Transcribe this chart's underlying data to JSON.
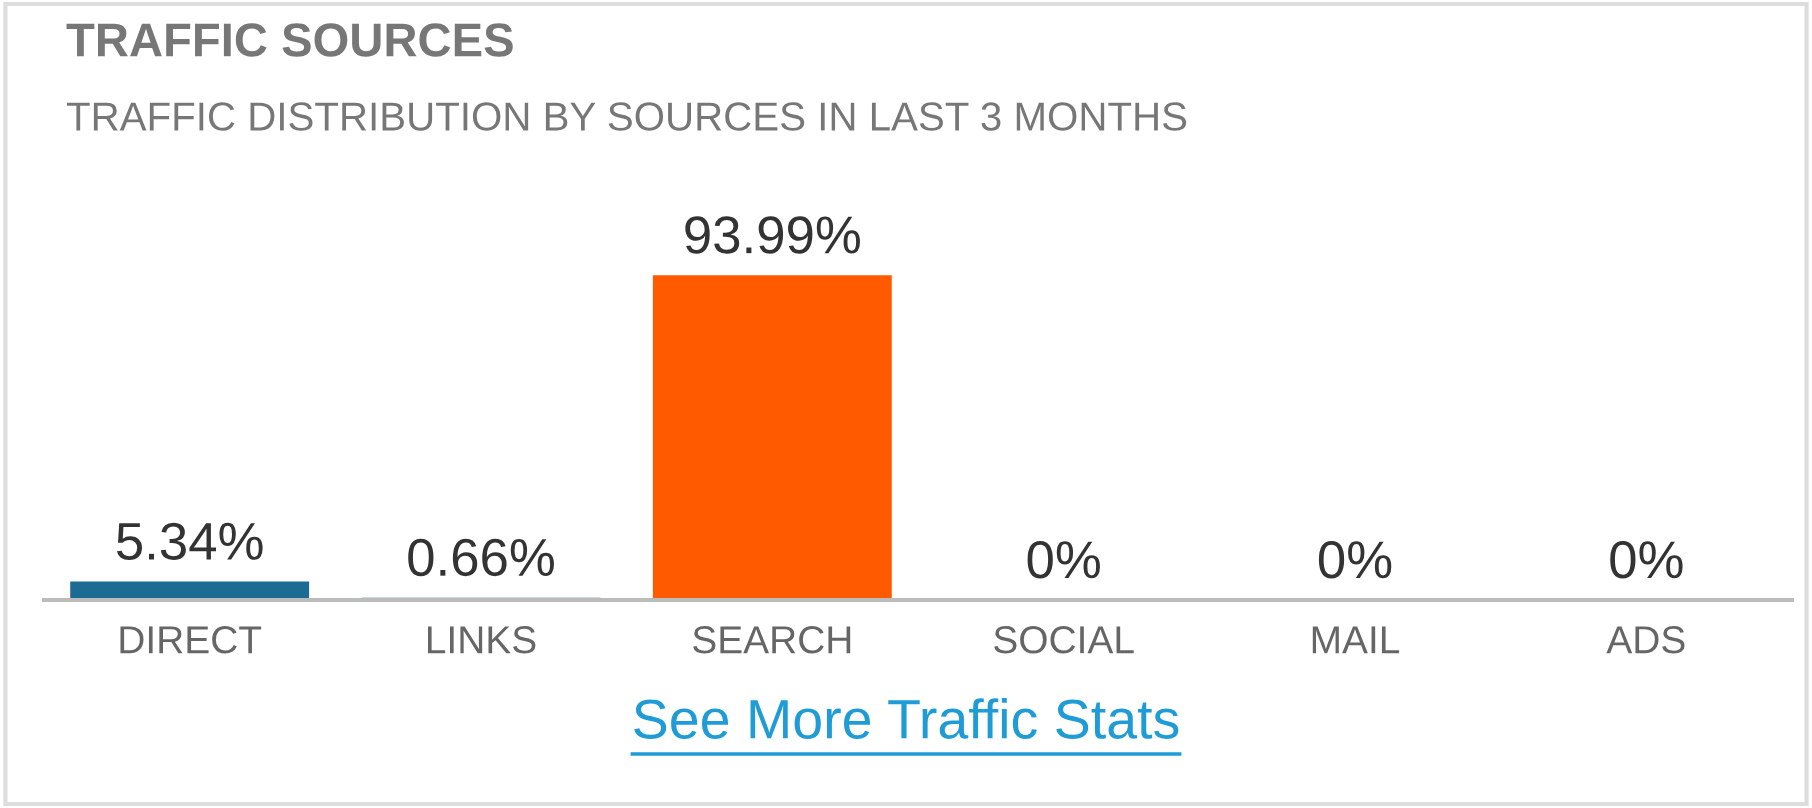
{
  "chart_data": {
    "type": "bar",
    "title": "TRAFFIC SOURCES",
    "subtitle": "TRAFFIC DISTRIBUTION BY SOURCES IN LAST 3 MONTHS",
    "categories": [
      "DIRECT",
      "LINKS",
      "SEARCH",
      "SOCIAL",
      "MAIL",
      "ADS"
    ],
    "values": [
      5.34,
      0.66,
      93.99,
      0,
      0,
      0
    ],
    "colors": [
      "#1b6b93",
      "#1b6b93",
      "#ff5a00",
      "#1b6b93",
      "#1b6b93",
      "#1b6b93"
    ],
    "value_labels": [
      "5.34%",
      "0.66%",
      "93.99%",
      "0%",
      "0%",
      "0%"
    ],
    "annotations": [
      "See More Traffic Stats"
    ]
  }
}
